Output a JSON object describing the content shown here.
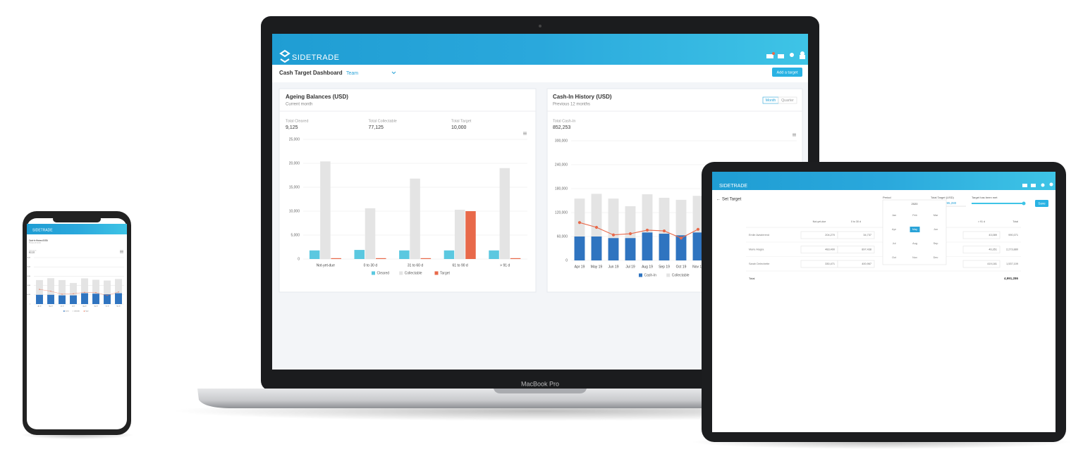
{
  "laptop": {
    "brand": "SIDETRADE",
    "page_title": "Cash Target Dashboard",
    "team_label": "Team",
    "add_button": "Add a target",
    "model_label": "MacBook Pro"
  },
  "chart_data": [
    {
      "type": "bar",
      "title": "Ageing Balances (USD)",
      "subtitle": "Current month",
      "kpis": [
        {
          "label": "Total Cleared",
          "value": "9,125"
        },
        {
          "label": "Total Collectable",
          "value": "77,125"
        },
        {
          "label": "Total Target",
          "value": "10,000"
        }
      ],
      "categories": [
        "Not-yet-due",
        "0 to 30 d",
        "31 to 60 d",
        "61 to 90 d",
        "> 91 d"
      ],
      "series": [
        {
          "name": "Cleared",
          "color": "#5bc8e0",
          "values": [
            1800,
            1900,
            1800,
            1800,
            1800
          ]
        },
        {
          "name": "Collectable",
          "color": "#e4e4e4",
          "values": [
            20400,
            10600,
            16800,
            10300,
            19000
          ]
        },
        {
          "name": "Target",
          "color": "#e8694a",
          "values": [
            0,
            0,
            0,
            10000,
            0
          ]
        }
      ],
      "ylim": [
        0,
        25000
      ],
      "yticks": [
        0,
        {
          "value": 5000,
          "label": "5,000"
        },
        {
          "value": 10000,
          "label": "10,000"
        },
        {
          "value": 15000,
          "label": "15,000"
        },
        {
          "value": 20000,
          "label": "20,000"
        },
        {
          "value": 25000,
          "label": "25,000"
        }
      ],
      "grid": true
    },
    {
      "type": "combo",
      "title": "Cash-In History (USD)",
      "subtitle": "Previous 12 months",
      "toggles": [
        "Month",
        "Quarter"
      ],
      "kpis": [
        {
          "label": "Total Cash-In",
          "value": "852,253"
        }
      ],
      "categories": [
        "Apr 19",
        "May 19",
        "Jun 19",
        "Jul 19",
        "Aug 19",
        "Sep 19",
        "Oct 19",
        "Nov 19"
      ],
      "series": [
        {
          "name": "Cash-In",
          "color": "#2f74c0",
          "values": [
            60000,
            60000,
            56000,
            56000,
            70000,
            67000,
            63000,
            70000
          ]
        },
        {
          "name": "Collectable",
          "color": "#e4e4e4",
          "values": [
            155000,
            167000,
            155000,
            136000,
            166000,
            157000,
            152000,
            162000
          ]
        },
        {
          "name": "Target",
          "color": "#e8694a",
          "line": true,
          "values": [
            95000,
            83000,
            64000,
            67000,
            76000,
            74000,
            56000,
            78000
          ]
        }
      ],
      "ylim": [
        0,
        300000
      ],
      "yticks": [
        0,
        {
          "value": 60000,
          "label": "60,000"
        },
        {
          "value": 120000,
          "label": "120,000"
        },
        {
          "value": 180000,
          "label": "180,000"
        },
        {
          "value": 240000,
          "label": "240,000"
        },
        {
          "value": 300000,
          "label": "300,000"
        }
      ],
      "grid": true
    }
  ],
  "tablet": {
    "brand": "SIDETRADE",
    "page_title": "Set Target",
    "period_label": "Period",
    "year": "2020",
    "total_target_label": "Total Target (USD)",
    "total_target_value": "195,280",
    "met_label": "Target has been met",
    "save_button": "Save",
    "months": [
      "Jan",
      "Feb",
      "Mar",
      "Apr",
      "May",
      "Jun",
      "Jul",
      "Aug",
      "Sep",
      "Oct",
      "Nov",
      "Dec"
    ],
    "selected_month": "May",
    "table": {
      "columns": [
        "Not-yet-due",
        "0 to 30 d",
        "> 91 d",
        "Total"
      ],
      "rows": [
        [
          "Emile Awwterend",
          "204,270",
          "34,737",
          "43,089",
          "990,071"
        ],
        [
          "Marie Alagra",
          "483,400",
          "897,438",
          "46,351",
          "2,273,880"
        ],
        [
          "Sarah Delechette",
          "330,471",
          "400,967",
          "419,181",
          "1,537,109"
        ]
      ],
      "total_label": "Total",
      "total_value": "4,991,286"
    }
  },
  "phone": {
    "brand": "SIDETRADE"
  }
}
